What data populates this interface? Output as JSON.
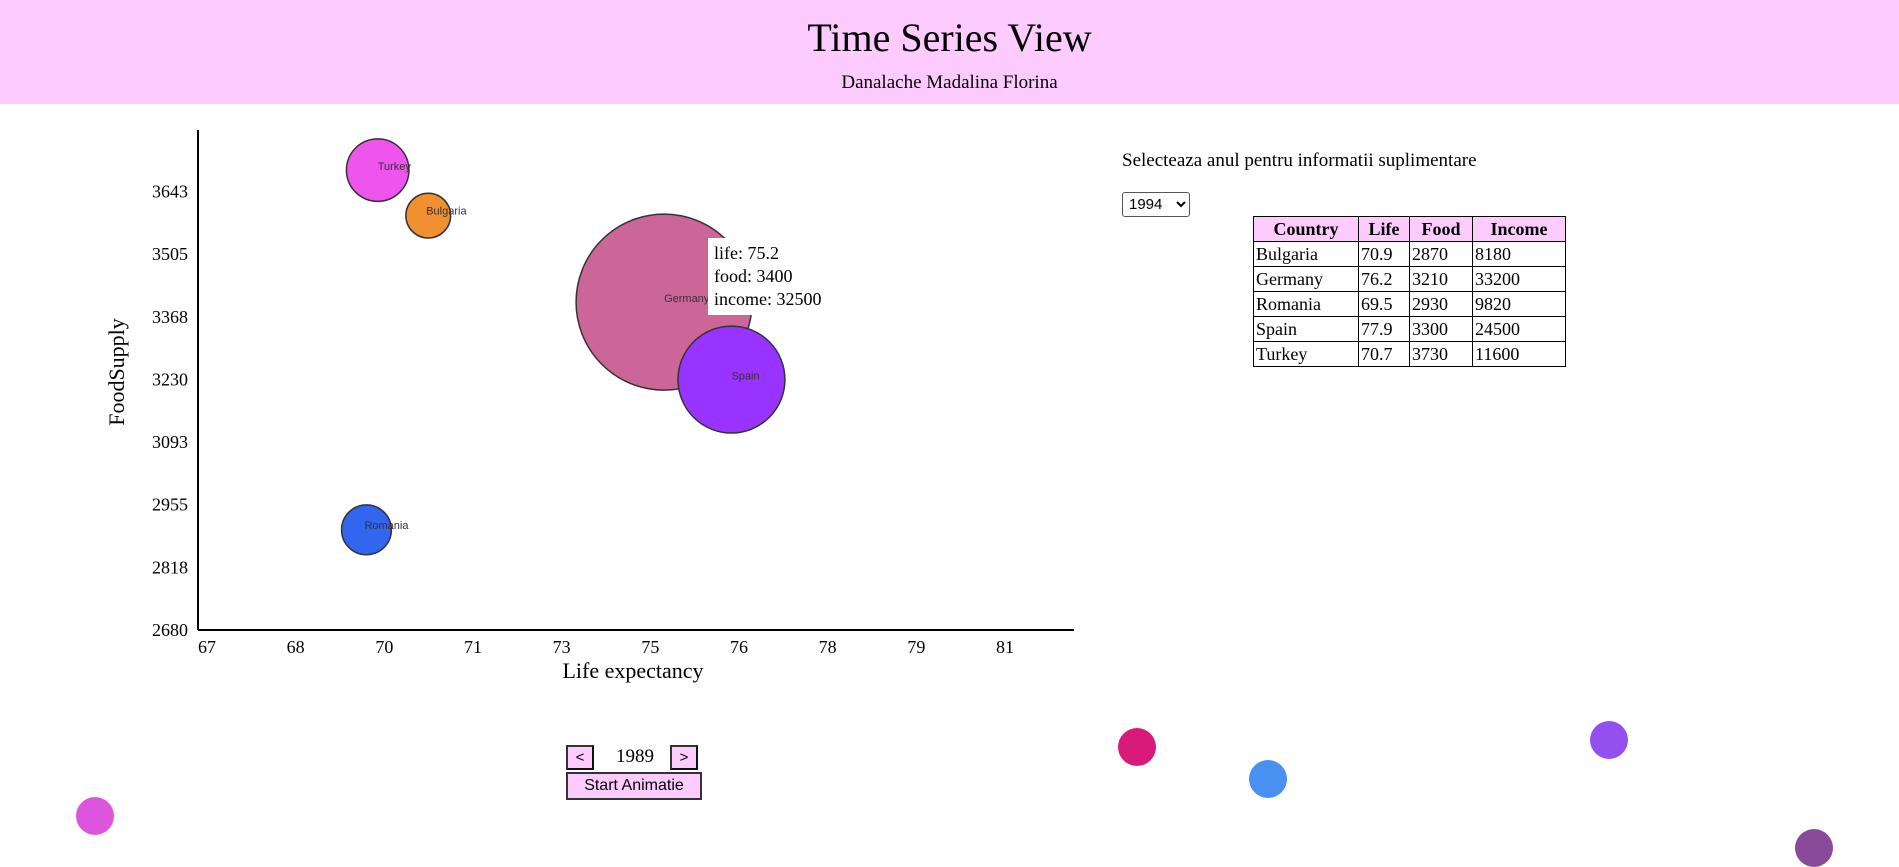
{
  "header": {
    "title": "Time Series View",
    "author": "Danalache Madalina Florina"
  },
  "tooltip": {
    "life": "life: 75.2",
    "food": "food: 3400",
    "income": "income: 32500"
  },
  "controls": {
    "prev_label": "<",
    "next_label": ">",
    "year": "1989",
    "start_label": "Start Animatie"
  },
  "selector": {
    "label": "Selecteaza anul pentru informatii suplimentare",
    "selected": "1994"
  },
  "table": {
    "headers": [
      "Country",
      "Life",
      "Food",
      "Income"
    ],
    "rows": [
      [
        "Bulgaria",
        "70.9",
        "2870",
        "8180"
      ],
      [
        "Germany",
        "76.2",
        "3210",
        "33200"
      ],
      [
        "Romania",
        "69.5",
        "2930",
        "9820"
      ],
      [
        "Spain",
        "77.9",
        "3300",
        "24500"
      ],
      [
        "Turkey",
        "70.7",
        "3730",
        "11600"
      ]
    ]
  },
  "chart_data": {
    "type": "scatter",
    "xlabel": "Life expectancy",
    "ylabel": "FoodSupply",
    "x_ticks": [
      "67",
      "68",
      "70",
      "71",
      "73",
      "75",
      "76",
      "78",
      "79",
      "81"
    ],
    "y_ticks": [
      "3643",
      "3505",
      "3368",
      "3230",
      "3093",
      "2955",
      "2818",
      "2680"
    ],
    "xlim": [
      66.9,
      82.5
    ],
    "ylim": [
      2680,
      3778
    ],
    "points": [
      {
        "label": "Turkey",
        "x": 70.1,
        "y": 3690,
        "income": 4100,
        "color": "#ee55ee"
      },
      {
        "label": "Bulgaria",
        "x": 71.0,
        "y": 3590,
        "income": 2100,
        "color": "#f09030"
      },
      {
        "label": "Germany",
        "x": 75.2,
        "y": 3400,
        "income": 32500,
        "color": "#cc6699"
      },
      {
        "label": "Spain",
        "x": 76.4,
        "y": 3230,
        "income": 12000,
        "color": "#9933ff"
      },
      {
        "label": "Romania",
        "x": 69.9,
        "y": 2900,
        "income": 2600,
        "color": "#3366ee"
      }
    ]
  },
  "decorations": [
    {
      "color": "#d81b7a"
    },
    {
      "color": "#4a90f0"
    },
    {
      "color": "#9450ee"
    },
    {
      "color": "#dd55dd"
    },
    {
      "color": "#8a4a9a"
    }
  ]
}
